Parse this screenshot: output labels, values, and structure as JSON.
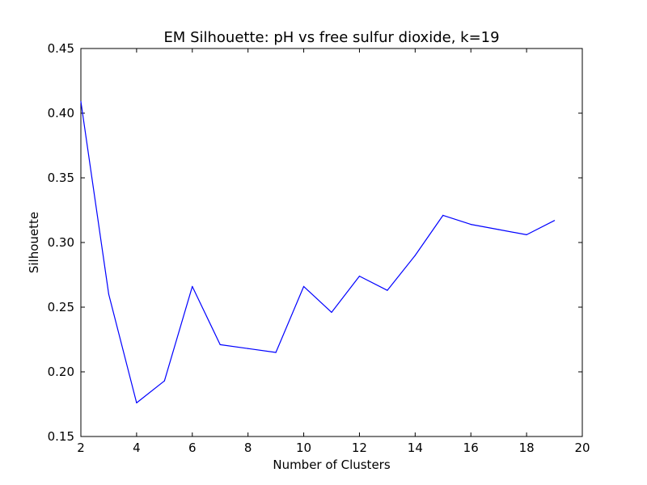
{
  "chart_data": {
    "type": "line",
    "title": "EM Silhouette: pH vs free sulfur dioxide, k=19",
    "xlabel": "Number of Clusters",
    "ylabel": "Silhouette",
    "xlim": [
      2,
      20
    ],
    "ylim": [
      0.15,
      0.45
    ],
    "xticks": [
      2,
      4,
      6,
      8,
      10,
      12,
      14,
      16,
      18,
      20
    ],
    "xtick_labels": [
      "2",
      "4",
      "6",
      "8",
      "10",
      "12",
      "14",
      "16",
      "18",
      "20"
    ],
    "yticks": [
      0.15,
      0.2,
      0.25,
      0.3,
      0.35,
      0.4,
      0.45
    ],
    "ytick_labels": [
      "0.15",
      "0.20",
      "0.25",
      "0.30",
      "0.35",
      "0.40",
      "0.45"
    ],
    "grid": false,
    "series": [
      {
        "color": "#0000ff",
        "x": [
          2,
          3,
          4,
          5,
          6,
          7,
          8,
          9,
          10,
          11,
          12,
          13,
          14,
          15,
          16,
          17,
          18,
          19
        ],
        "y": [
          0.409,
          0.26,
          0.176,
          0.193,
          0.266,
          0.221,
          0.218,
          0.215,
          0.266,
          0.246,
          0.274,
          0.263,
          0.29,
          0.321,
          0.314,
          0.31,
          0.306,
          0.317
        ]
      }
    ]
  }
}
